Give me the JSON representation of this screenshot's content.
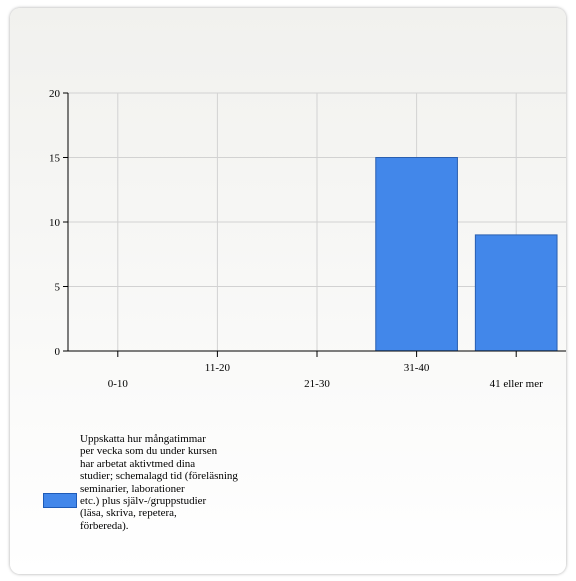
{
  "chart_data": {
    "type": "bar",
    "categories": [
      "0-10",
      "11-20",
      "21-30",
      "31-40",
      "41 eller mer"
    ],
    "series": [
      {
        "name": "Uppskatta hur många timmar per vecka som du under kursen har arbetat aktivt med dina studier; schemalagd tid (föreläsning, seminarier, laborationer etc.) plus själv-/gruppstudier (läsa, skriva, repetera, förbereda).",
        "values": [
          0,
          0,
          0,
          15,
          9
        ]
      }
    ],
    "yticks": [
      "0",
      "5",
      "10",
      "15",
      "20"
    ],
    "ylim": [
      0,
      20
    ],
    "grid": true,
    "legend_position": "bottom-left",
    "bar_color": "#4287ea",
    "bar_border_color": "#2a5fb0"
  },
  "legend": {
    "label": "Uppskatta hur mångatimmar\nper vecka som du under kursen\nhar arbetat aktivtmed dina\nstudier; schemalagd tid (föreläsning\nseminarier, laborationer\netc.) plus själv-/gruppstudier\n(läsa, skriva, repetera,\nförbereda)."
  }
}
